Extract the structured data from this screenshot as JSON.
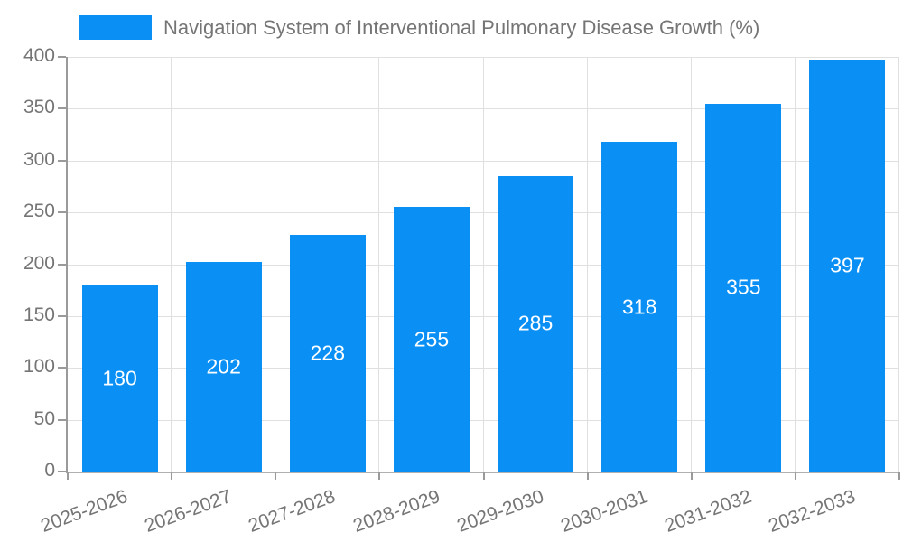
{
  "colors": {
    "bar": "#0a90f5",
    "grid": "#e0e0e0",
    "axis": "#9a9a9a",
    "text": "#757575",
    "bar_label": "#ffffff",
    "background": "#ffffff"
  },
  "legend": {
    "label": "Navigation System of Interventional Pulmonary Disease Growth (%)"
  },
  "chart_data": {
    "type": "bar",
    "title": "Navigation System of Interventional Pulmonary Disease Growth (%)",
    "categories": [
      "2025-2026",
      "2026-2027",
      "2027-2028",
      "2028-2029",
      "2029-2030",
      "2030-2031",
      "2031-2032",
      "2032-2033"
    ],
    "values": [
      180,
      202,
      228,
      255,
      285,
      318,
      355,
      397
    ],
    "xlabel": "",
    "ylabel": "",
    "ylim": [
      0,
      400
    ],
    "yticks": [
      0,
      50,
      100,
      150,
      200,
      250,
      300,
      350,
      400
    ],
    "grid": true,
    "legend_position": "top-left",
    "bar_label_position": "inside-center",
    "x_label_rotation_deg": -20
  }
}
